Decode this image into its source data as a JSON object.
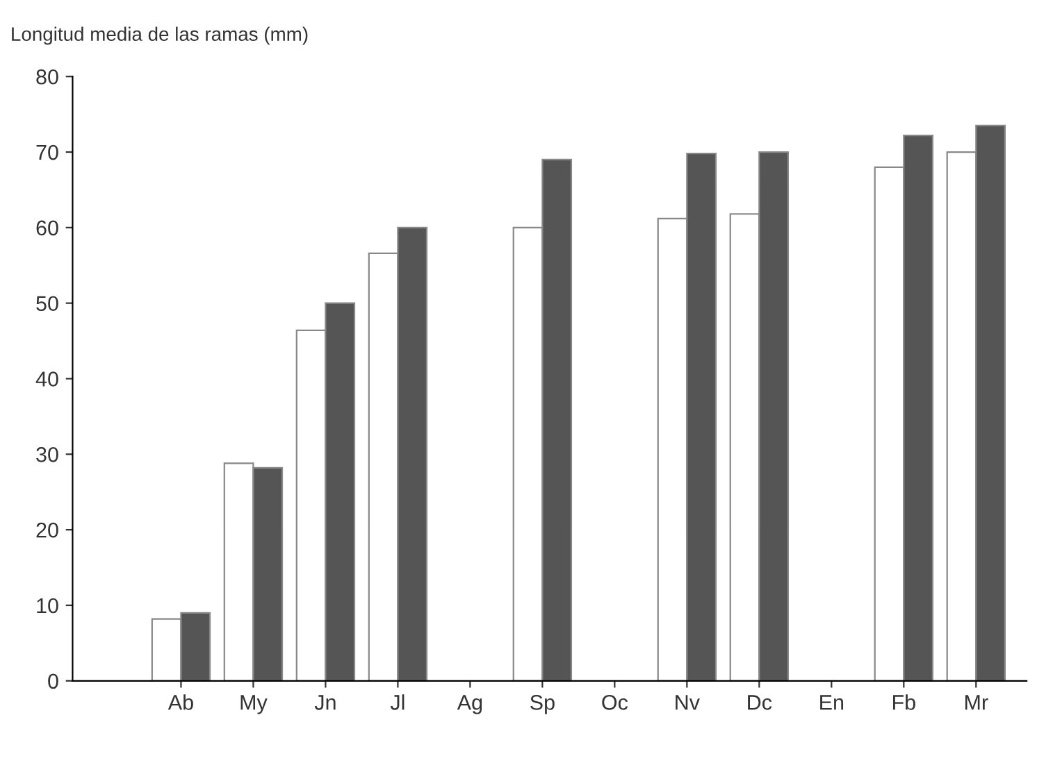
{
  "chart_data": {
    "type": "bar",
    "ylabel": "Longitud media de las ramas (mm)",
    "categories": [
      "Ab",
      "My",
      "Jn",
      "Jl",
      "Ag",
      "Sp",
      "Oc",
      "Nv",
      "Dc",
      "En",
      "Fb",
      "Mr"
    ],
    "series": [
      {
        "color": "#ffffff",
        "values": [
          8.2,
          28.8,
          46.4,
          56.6,
          null,
          60,
          null,
          61.2,
          61.8,
          null,
          68,
          70
        ]
      },
      {
        "color": "#555555",
        "values": [
          9,
          28.2,
          50,
          60,
          null,
          69,
          null,
          69.8,
          70,
          null,
          72.2,
          73.5
        ]
      }
    ],
    "ylim": [
      0,
      80
    ],
    "yticks": [
      0,
      10,
      20,
      30,
      40,
      50,
      60,
      70,
      80
    ],
    "grid": false,
    "legend": false
  }
}
